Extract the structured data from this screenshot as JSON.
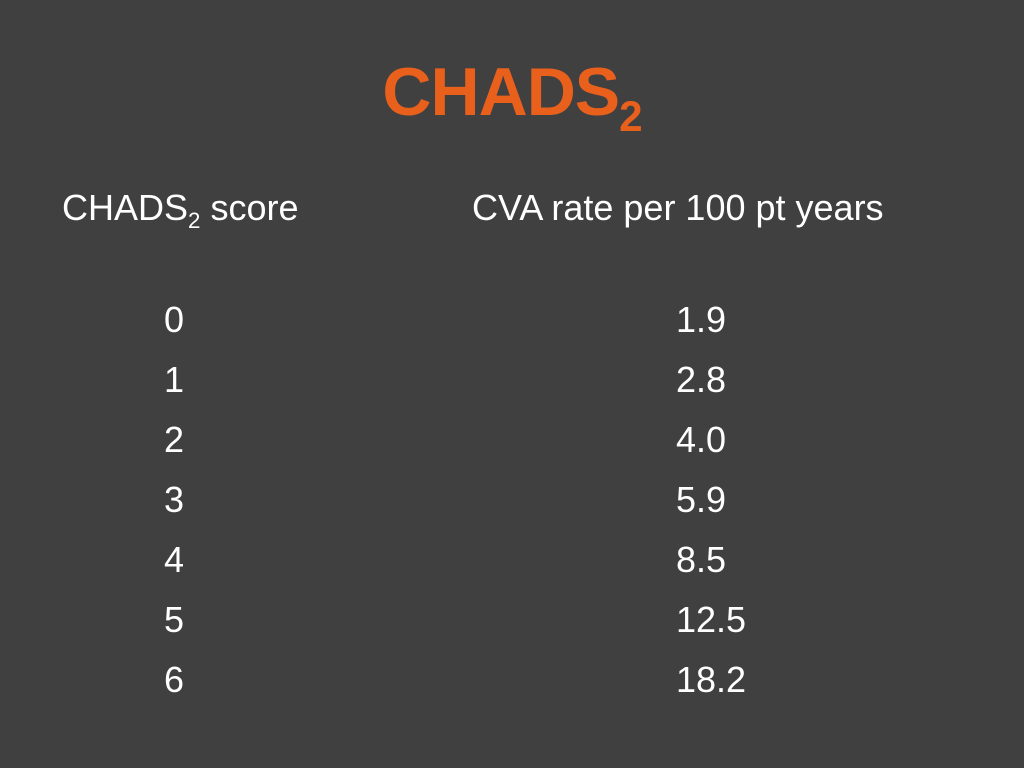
{
  "slide": {
    "title": {
      "main": "CHADS",
      "subscript": "2"
    },
    "table": {
      "headers": {
        "score": {
          "main": "CHADS",
          "subscript": "2",
          "suffix": " score"
        },
        "rate": "CVA rate per 100 pt years"
      },
      "rows": [
        {
          "score": "0",
          "rate": "1.9"
        },
        {
          "score": "1",
          "rate": "2.8"
        },
        {
          "score": "2",
          "rate": "4.0"
        },
        {
          "score": "3",
          "rate": "5.9"
        },
        {
          "score": "4",
          "rate": "8.5"
        },
        {
          "score": "5",
          "rate": "12.5"
        },
        {
          "score": "6",
          "rate": "18.2"
        }
      ]
    }
  },
  "colors": {
    "background": "#404040",
    "title": "#e8601c",
    "text": "#ffffff"
  }
}
